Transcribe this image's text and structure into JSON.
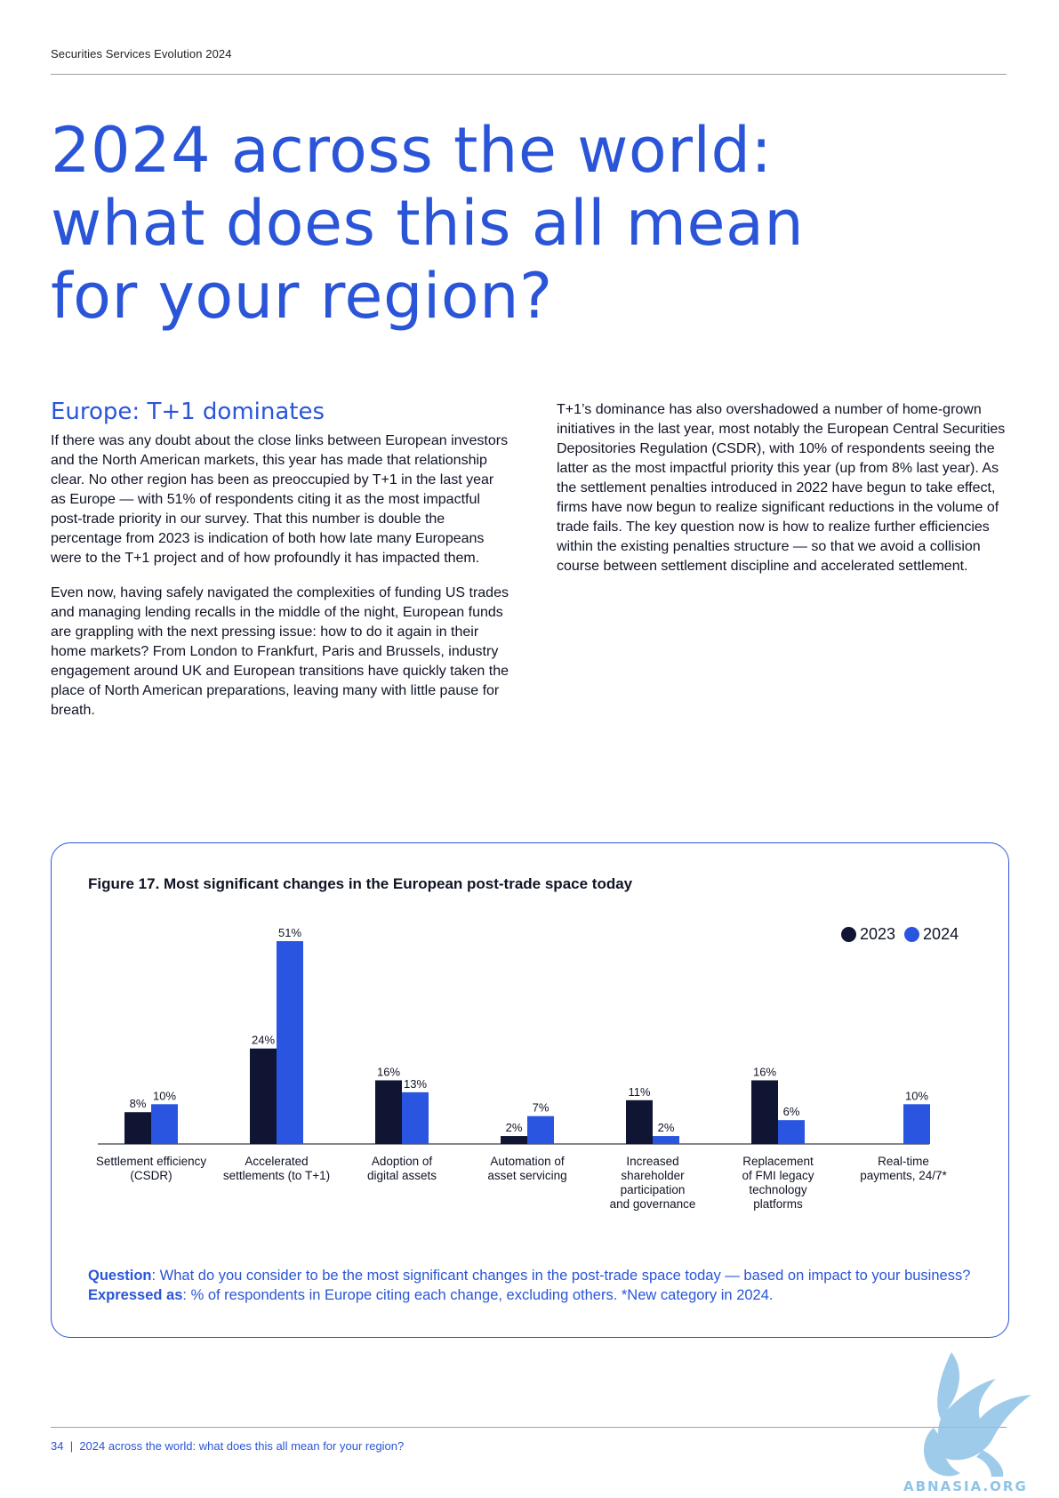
{
  "header": {
    "text": "Securities Services Evolution 2024"
  },
  "title_lines": [
    "2024 across the world:",
    "what does this all mean",
    "for your region?"
  ],
  "left_column": {
    "heading": "Europe: T+1 dominates",
    "paragraphs": [
      "If there was any doubt about the close links between European investors and the North American markets, this year has made that relationship clear. No other region has been as preoccupied by T+1 in the last year as Europe — with 51% of respondents citing it as the most impactful post-trade priority in our survey. That this number is double the percentage from 2023 is indication of both how late many Europeans were to the T+1 project and of how profoundly it has impacted them.",
      "Even now, having safely navigated the complexities of funding US trades and managing lending recalls in the middle of the night, European funds are grappling with the next pressing issue: how to do it again in their home markets? From London to Frankfurt, Paris and Brussels, industry engagement around UK and European transitions have quickly taken the place of North American preparations, leaving many with little pause for breath."
    ]
  },
  "right_column": {
    "paragraphs": [
      "T+1’s dominance has also overshadowed a number of home-grown initiatives in the last year, most notably the European Central Securities Depositories Regulation (CSDR), with 10% of respondents seeing the latter as the most impactful priority this year (up from 8% last year). As the settlement penalties introduced in 2022 have begun to take effect, firms have now begun to realize significant reductions in the volume of trade fails. The key question now is how to realize further efficiencies within the existing penalties structure — so that we avoid a collision course between settlement discipline and accelerated settlement."
    ]
  },
  "figure": {
    "title": "Figure 17. Most significant changes in the European post-trade space today",
    "question_label": "Question",
    "question_text": ": What do you consider to be the most significant changes in the post-trade space today — based on impact to your business? ",
    "expressed_label": "Expressed as",
    "expressed_text": ": % of respondents in Europe citing each change, excluding others. *New category in 2024."
  },
  "chart_data": {
    "type": "bar",
    "categories": [
      "Settlement efficiency (CSDR)",
      "Accelerated settlements (to T+1)",
      "Adoption of digital assets",
      "Automation of asset servicing",
      "Increased shareholder participation and governance",
      "Replacement of FMI legacy technology platforms",
      "Real-time payments, 24/7*"
    ],
    "category_display": [
      "Settlement efficiency\n(CSDR)",
      "Accelerated\nsettlements (to T+1)",
      "Adoption of\ndigital assets",
      "Automation of\nasset servicing",
      "Increased\nshareholder\nparticipation\nand governance",
      "Replacement\nof FMI legacy\ntechnology\nplatforms",
      "Real-time\npayments, 24/7*"
    ],
    "series": [
      {
        "name": "2023",
        "color": "#0f1533",
        "values": [
          8,
          24,
          16,
          2,
          11,
          16,
          null
        ]
      },
      {
        "name": "2024",
        "color": "#2a55e0",
        "values": [
          10,
          51,
          13,
          7,
          2,
          6,
          10
        ]
      }
    ],
    "ylim": [
      0,
      51
    ],
    "legend_position": "top-right",
    "grid": false
  },
  "footer": {
    "page": "34",
    "separator": "|",
    "text": "2024 across the world: what does this all mean for your region?"
  },
  "watermark": {
    "text": "ABNASIA.ORG"
  }
}
